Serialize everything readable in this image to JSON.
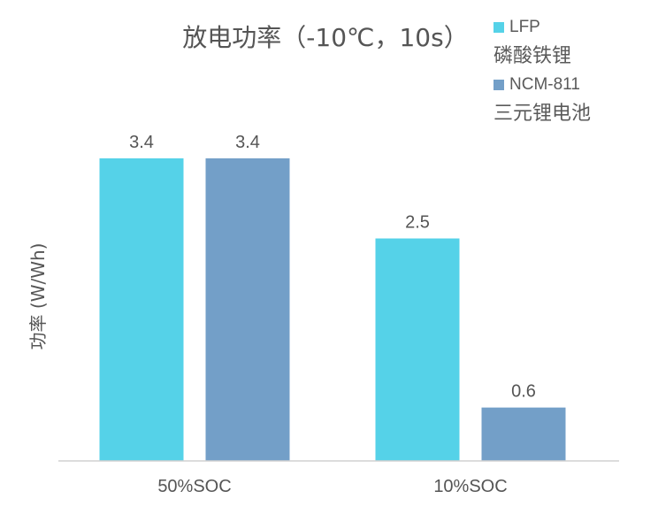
{
  "chart_data": {
    "type": "bar",
    "title": "放电功率（-10℃，10s）",
    "ylabel": "功率 (W/Wh)",
    "xlabel": "",
    "categories": [
      "50%SOC",
      "10%SOC"
    ],
    "series": [
      {
        "name": "LFP",
        "description": "磷酸铁锂",
        "color": "#55d2e8",
        "values": [
          3.4,
          2.5
        ]
      },
      {
        "name": "NCM-811",
        "description": "三元锂电池",
        "color": "#739fc8",
        "values": [
          3.4,
          0.6
        ]
      }
    ],
    "data_labels": {
      "LFP": [
        "3.4",
        "2.5"
      ],
      "NCM-811": [
        "3.4",
        "0.6"
      ]
    },
    "ylim": [
      0,
      3.4
    ],
    "grid": false,
    "legend_position": "top-right"
  }
}
